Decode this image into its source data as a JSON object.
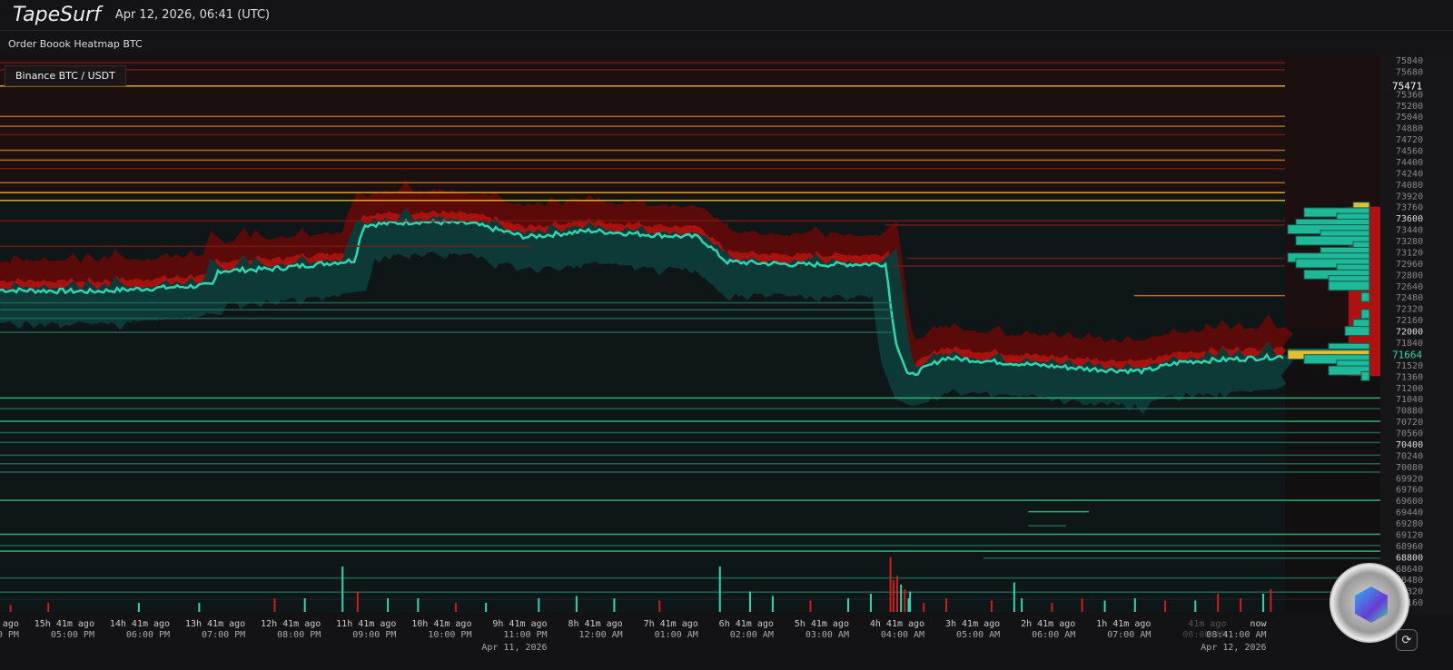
{
  "header": {
    "brand": "TapeSurf",
    "timestamp": "Apr 12, 2026, 06:41 (UTC)"
  },
  "subheader": {
    "title": "Order Boook Heatmap BTC"
  },
  "market": {
    "label": "Binance BTC / USDT"
  },
  "colors": {
    "bid": "#2fd6b0",
    "ask": "#d41a1a",
    "ask_level": "#f0b830",
    "bid_level": "#2ec27e",
    "background": "#131316"
  },
  "icons": {
    "refresh": "refresh-icon",
    "logo": "coin-logo"
  },
  "chart_data": {
    "type": "heatmap",
    "ylim": [
      68160,
      75840
    ],
    "y_ticks": [
      75840,
      75680,
      75360,
      75200,
      75040,
      74880,
      74720,
      74560,
      74400,
      74240,
      74080,
      73920,
      73760,
      73600,
      73440,
      73280,
      73120,
      72960,
      72800,
      72640,
      72480,
      72320,
      72160,
      72000,
      71840,
      71520,
      71360,
      71200,
      71040,
      70880,
      70720,
      70560,
      70400,
      70240,
      70080,
      69920,
      69760,
      69600,
      69440,
      69280,
      69120,
      68960,
      68800,
      68640,
      68480,
      68320,
      68160
    ],
    "price_markers": [
      {
        "label": "75471",
        "value": 75471,
        "color": "#ffffff"
      },
      {
        "label": "71664",
        "value": 71664,
        "color": "#2fd6b0"
      }
    ],
    "x_ticks": [
      {
        "hours_ago": 16.68,
        "rel": "ago",
        "time": "0 PM",
        "date": ""
      },
      {
        "hours_ago": 15.68,
        "rel": "15h 41m ago",
        "time": "05:00 PM",
        "date": ""
      },
      {
        "hours_ago": 14.68,
        "rel": "14h 41m ago",
        "time": "06:00 PM",
        "date": ""
      },
      {
        "hours_ago": 13.68,
        "rel": "13h 41m ago",
        "time": "07:00 PM",
        "date": ""
      },
      {
        "hours_ago": 12.68,
        "rel": "12h 41m ago",
        "time": "08:00 PM",
        "date": ""
      },
      {
        "hours_ago": 11.68,
        "rel": "11h 41m ago",
        "time": "09:00 PM",
        "date": ""
      },
      {
        "hours_ago": 10.68,
        "rel": "10h 41m ago",
        "time": "10:00 PM",
        "date": ""
      },
      {
        "hours_ago": 9.68,
        "rel": "9h 41m ago",
        "time": "11:00 PM",
        "date": "Apr 11, 2026"
      },
      {
        "hours_ago": 8.68,
        "rel": "8h 41m ago",
        "time": "12:00 AM",
        "date": ""
      },
      {
        "hours_ago": 7.68,
        "rel": "7h 41m ago",
        "time": "01:00 AM",
        "date": ""
      },
      {
        "hours_ago": 6.68,
        "rel": "6h 41m ago",
        "time": "02:00 AM",
        "date": ""
      },
      {
        "hours_ago": 5.68,
        "rel": "5h 41m ago",
        "time": "03:00 AM",
        "date": ""
      },
      {
        "hours_ago": 4.68,
        "rel": "4h 41m ago",
        "time": "04:00 AM",
        "date": ""
      },
      {
        "hours_ago": 3.68,
        "rel": "3h 41m ago",
        "time": "05:00 AM",
        "date": ""
      },
      {
        "hours_ago": 2.68,
        "rel": "2h 41m ago",
        "time": "06:00 AM",
        "date": ""
      },
      {
        "hours_ago": 1.68,
        "rel": "1h 41m ago",
        "time": "07:00 AM",
        "date": ""
      },
      {
        "hours_ago": 0.68,
        "rel": "41m ago",
        "time": "08:00 AM",
        "date": "",
        "faded": true
      },
      {
        "hours_ago": 0.15,
        "rel": "now",
        "time": "08:41:00 AM",
        "date": "Apr 12, 2026"
      }
    ],
    "price_series": [
      [
        17.03,
        72580
      ],
      [
        15.82,
        72560
      ],
      [
        14.2,
        72650
      ],
      [
        14.14,
        72850
      ],
      [
        13.42,
        72880
      ],
      [
        12.33,
        73000
      ],
      [
        12.21,
        73500
      ],
      [
        11.49,
        73550
      ],
      [
        10.77,
        73520
      ],
      [
        10.05,
        73330
      ],
      [
        9.21,
        73420
      ],
      [
        8.36,
        73360
      ],
      [
        7.76,
        73330
      ],
      [
        7.4,
        72980
      ],
      [
        6.44,
        72940
      ],
      [
        5.29,
        72950
      ],
      [
        5.17,
        71900
      ],
      [
        4.99,
        71350
      ],
      [
        4.51,
        71620
      ],
      [
        3.79,
        71560
      ],
      [
        2.59,
        71460
      ],
      [
        1.87,
        71430
      ],
      [
        1.38,
        71560
      ],
      [
        0,
        71640
      ]
    ],
    "ask_levels": [
      [
        75800,
        17.03,
        0,
        0.5
      ],
      [
        75700,
        17.03,
        0,
        0.4
      ],
      [
        75471,
        17.03,
        0,
        0.9
      ],
      [
        75040,
        17.03,
        0,
        0.7
      ],
      [
        74900,
        17.03,
        0,
        0.6
      ],
      [
        74780,
        17.03,
        0,
        0.4
      ],
      [
        74560,
        17.03,
        0,
        0.6
      ],
      [
        74420,
        17.03,
        0,
        0.7
      ],
      [
        74300,
        17.03,
        0,
        0.5
      ],
      [
        74100,
        17.03,
        0,
        0.7
      ],
      [
        73960,
        17.03,
        0,
        0.8
      ],
      [
        73850,
        17.03,
        0,
        1.0
      ],
      [
        73560,
        17.03,
        0,
        0.4
      ],
      [
        73500,
        5.3,
        0,
        0.5
      ],
      [
        73200,
        17.03,
        10,
        0.5
      ],
      [
        72920,
        5.2,
        0,
        0.5
      ],
      [
        72500,
        2.0,
        0,
        0.6
      ],
      [
        73030,
        5.0,
        0,
        0.5
      ]
    ],
    "bid_levels": [
      [
        72400,
        17.03,
        5.2,
        0.6
      ],
      [
        72300,
        17.03,
        5.2,
        0.5
      ],
      [
        72180,
        17.03,
        5.2,
        0.4
      ],
      [
        71980,
        17.03,
        5.2,
        0.5
      ],
      [
        71050,
        17.03,
        0,
        0.7
      ],
      [
        70900,
        17.03,
        0,
        0.6
      ],
      [
        70720,
        17.03,
        0,
        0.8
      ],
      [
        70560,
        17.03,
        0,
        0.5
      ],
      [
        70420,
        17.03,
        0,
        0.6
      ],
      [
        70240,
        17.03,
        0,
        0.5
      ],
      [
        70120,
        17.03,
        0,
        0.6
      ],
      [
        70000,
        17.03,
        0,
        0.5
      ],
      [
        69600,
        17.03,
        0,
        0.7
      ],
      [
        69440,
        3.4,
        2.6,
        0.8
      ],
      [
        69240,
        3.4,
        2.9,
        0.6
      ],
      [
        69120,
        17.03,
        0,
        0.7
      ],
      [
        68960,
        17.03,
        0,
        0.6
      ],
      [
        68880,
        17.03,
        0,
        0.7
      ],
      [
        68780,
        4.0,
        0,
        0.5
      ],
      [
        68500,
        17.03,
        0,
        0.6
      ],
      [
        68300,
        17.03,
        0,
        0.4
      ]
    ],
    "book_profile": [
      [
        73760,
        "ask",
        0.2
      ],
      [
        73680,
        "bid",
        0.8
      ],
      [
        73600,
        "bid",
        0.4
      ],
      [
        73520,
        "bid",
        0.9
      ],
      [
        73440,
        "bid",
        1.0
      ],
      [
        73360,
        "bid",
        0.6
      ],
      [
        73280,
        "bid",
        0.9
      ],
      [
        73200,
        "bid",
        0.2
      ],
      [
        73120,
        "bid",
        0.6
      ],
      [
        73040,
        "bid",
        1.0
      ],
      [
        72960,
        "bid",
        0.9
      ],
      [
        72880,
        "bid",
        0.4
      ],
      [
        72800,
        "bid",
        0.8
      ],
      [
        72720,
        "bid",
        0.5
      ],
      [
        72640,
        "bid",
        0.5
      ],
      [
        72480,
        "bid",
        0.1
      ],
      [
        72240,
        "bid",
        0.1
      ],
      [
        72100,
        "bid",
        0.2
      ],
      [
        72000,
        "bid",
        0.3
      ],
      [
        71760,
        "bid",
        0.5
      ],
      [
        71680,
        "bid",
        1.0
      ],
      [
        71664,
        "ask",
        1.0
      ],
      [
        71600,
        "bid",
        0.8
      ],
      [
        71520,
        "bid",
        0.4
      ],
      [
        71440,
        "bid",
        0.5
      ],
      [
        71360,
        "bid",
        0.1
      ]
    ],
    "volume": [
      [
        16.9,
        0.15,
        "ask"
      ],
      [
        16.4,
        0.2,
        "ask"
      ],
      [
        15.2,
        0.2,
        "bid"
      ],
      [
        14.4,
        0.2,
        "bid"
      ],
      [
        13.4,
        0.3,
        "ask"
      ],
      [
        13.0,
        0.3,
        "bid"
      ],
      [
        12.5,
        1.0,
        "bid"
      ],
      [
        12.3,
        0.45,
        "ask"
      ],
      [
        11.9,
        0.3,
        "bid"
      ],
      [
        11.5,
        0.3,
        "bid"
      ],
      [
        11.0,
        0.2,
        "ask"
      ],
      [
        10.6,
        0.2,
        "bid"
      ],
      [
        9.9,
        0.3,
        "bid"
      ],
      [
        9.4,
        0.35,
        "bid"
      ],
      [
        8.9,
        0.3,
        "bid"
      ],
      [
        8.3,
        0.25,
        "ask"
      ],
      [
        7.5,
        1.0,
        "bid"
      ],
      [
        7.1,
        0.45,
        "bid"
      ],
      [
        6.8,
        0.35,
        "bid"
      ],
      [
        6.3,
        0.25,
        "ask"
      ],
      [
        5.8,
        0.3,
        "bid"
      ],
      [
        5.5,
        0.4,
        "bid"
      ],
      [
        5.0,
        0.3,
        "bid"
      ],
      [
        4.8,
        0.2,
        "ask"
      ],
      [
        4.5,
        0.3,
        "ask"
      ],
      [
        3.9,
        0.25,
        "ask"
      ],
      [
        3.5,
        0.3,
        "bid"
      ],
      [
        3.1,
        0.2,
        "ask"
      ],
      [
        2.7,
        0.3,
        "ask"
      ],
      [
        2.4,
        0.25,
        "bid"
      ],
      [
        2.0,
        0.3,
        "bid"
      ],
      [
        1.6,
        0.25,
        "ask"
      ],
      [
        1.2,
        0.25,
        "bid"
      ],
      [
        0.6,
        0.3,
        "ask"
      ],
      [
        0.3,
        0.4,
        "bid"
      ],
      [
        5.24,
        1.2,
        "ask"
      ],
      [
        5.2,
        0.7,
        "ask"
      ],
      [
        5.15,
        0.8,
        "ask"
      ],
      [
        5.1,
        0.6,
        "bid"
      ],
      [
        5.05,
        0.5,
        "ask"
      ],
      [
        4.98,
        0.45,
        "bid"
      ],
      [
        3.6,
        0.65,
        "bid"
      ],
      [
        0.9,
        0.4,
        "ask"
      ],
      [
        0.2,
        0.5,
        "ask"
      ]
    ]
  }
}
